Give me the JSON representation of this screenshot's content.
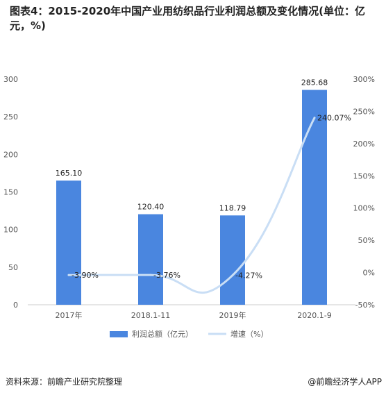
{
  "title": "图表4：2015-2020年中国产业用纺织品行业利润总额及变化情况(单位：亿元，%)",
  "source": "资料来源：前瞻产业研究院整理",
  "brand": "@前瞻经济学人APP",
  "colors": {
    "bar": "#4a86df",
    "line": "#c9def5"
  },
  "chart_data": {
    "type": "bar",
    "categories": [
      "2017年",
      "2018.1-11",
      "2019年",
      "2020.1-9"
    ],
    "series": [
      {
        "name": "利润总额（亿元）",
        "type": "bar",
        "axis": "left",
        "values": [
          165.1,
          120.4,
          118.79,
          285.68
        ],
        "labels": [
          "165.10",
          "120.40",
          "118.79",
          "285.68"
        ]
      },
      {
        "name": "增速（%）",
        "type": "line",
        "axis": "right",
        "values": [
          -3.9,
          -3.76,
          -4.27,
          240.07
        ],
        "labels": [
          "-3.90%",
          "-3.76%",
          "-4.27%",
          "240.07%"
        ]
      }
    ],
    "left_axis": {
      "min": 0,
      "max": 300,
      "step": 50,
      "ticks": [
        "0",
        "50",
        "100",
        "150",
        "200",
        "250",
        "300"
      ]
    },
    "right_axis": {
      "min": -50,
      "max": 300,
      "step": 50,
      "ticks": [
        "-50%",
        "0%",
        "50%",
        "100%",
        "150%",
        "200%",
        "250%",
        "300%"
      ]
    },
    "legend_position": "bottom",
    "grid": false
  }
}
